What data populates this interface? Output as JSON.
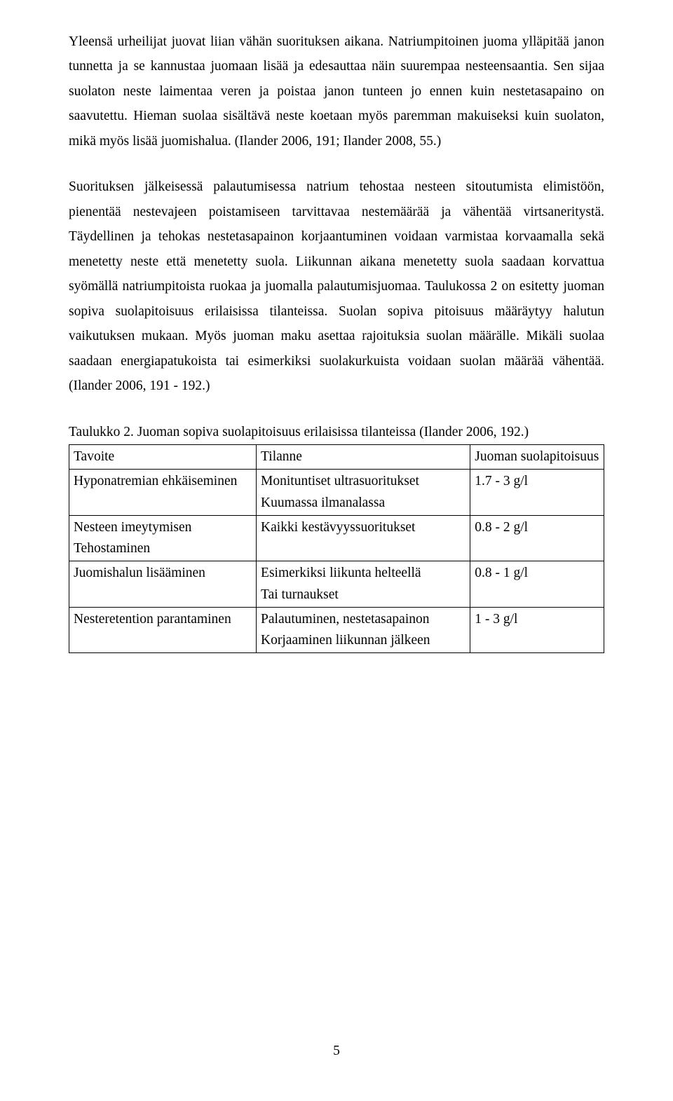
{
  "paragraphs": {
    "p1": "Yleensä urheilijat juovat liian vähän suorituksen aikana. Natriumpitoinen juoma ylläpitää janon tunnetta ja se kannustaa juomaan lisää ja edesauttaa näin suurempaa nesteensaantia. Sen sijaa suolaton neste laimentaa veren ja poistaa janon tunteen jo ennen kuin nestetasapaino on saavutettu. Hieman suolaa sisältävä neste koetaan myös paremman makuiseksi kuin suolaton, mikä myös lisää juomishalua. (Ilander 2006, 191; Ilander 2008, 55.)",
    "p2": "Suorituksen jälkeisessä palautumisessa natrium tehostaa nesteen sitoutumista elimistöön, pienentää nestevajeen poistamiseen tarvittavaa nestemäärää ja vähentää virtsaneritystä. Täydellinen ja tehokas nestetasapainon korjaantuminen voidaan varmistaa korvaamalla sekä menetetty neste että menetetty suola. Liikunnan aikana menetetty suola saadaan korvattua syömällä natriumpitoista ruokaa ja juomalla palautumisjuomaa. Taulukossa 2 on esitetty juoman sopiva suolapitoisuus erilaisissa tilanteissa. Suolan sopiva pitoisuus määräytyy halutun vaikutuksen mukaan. Myös juoman maku asettaa rajoituksia suolan määrälle. Mikäli suolaa saadaan energiapatukoista tai esimerkiksi suolakurkuista voidaan suolan määrää vähentää. (Ilander 2006, 191 - 192.)"
  },
  "table": {
    "caption": "Taulukko 2. Juoman sopiva suolapitoisuus erilaisissa tilanteissa (Ilander 2006, 192.)",
    "headers": {
      "c1": "Tavoite",
      "c2": "Tilanne",
      "c3": "Juoman suolapitoisuus"
    },
    "rows": [
      {
        "c1a": "Hyponatremian ehkäiseminen",
        "c1b": "",
        "c2a": "Monituntiset ultrasuoritukset",
        "c2b": "Kuumassa ilmanalassa",
        "c3": "1.7 - 3 g/l"
      },
      {
        "c1a": "Nesteen imeytymisen",
        "c1b": "Tehostaminen",
        "c2a": "Kaikki kestävyyssuoritukset",
        "c2b": "",
        "c3": "0.8 - 2 g/l"
      },
      {
        "c1a": "Juomishalun lisääminen",
        "c1b": "",
        "c2a": "Esimerkiksi liikunta helteellä",
        "c2b": "Tai turnaukset",
        "c3": "0.8 - 1 g/l"
      },
      {
        "c1a": "Nesteretention parantaminen",
        "c1b": "",
        "c2a": "Palautuminen, nestetasapainon",
        "c2b": "Korjaaminen liikunnan jälkeen",
        "c3": "1 - 3 g/l"
      }
    ]
  },
  "pageNumber": "5"
}
